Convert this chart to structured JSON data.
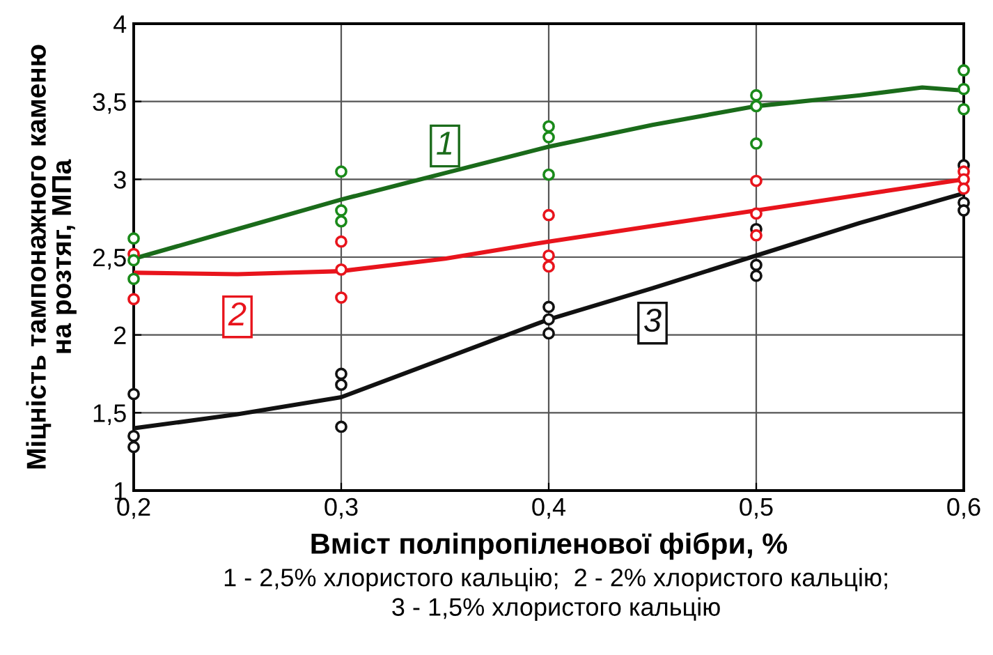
{
  "chart_data": {
    "type": "line",
    "xlabel": "Вміст поліпропіленової фібри, %",
    "ylabel": "Міцність тампонажного каменю\nна розтяг, МПа",
    "annotations": [
      "1 - 2,5% хлористого кальцію;  2 - 2% хлористого кальцію;",
      "3 - 1,5% хлористого кальцію"
    ],
    "xlim": [
      0.2,
      0.6
    ],
    "xticks": [
      {
        "value": 0.2,
        "label": "0,2"
      },
      {
        "value": 0.3,
        "label": "0,3"
      },
      {
        "value": 0.4,
        "label": "0,4"
      },
      {
        "value": 0.5,
        "label": "0,5"
      },
      {
        "value": 0.6,
        "label": "0,6"
      }
    ],
    "ylim": [
      1,
      4
    ],
    "yticks": [
      1,
      {
        "value": 1.5,
        "label": "1,5"
      },
      2,
      {
        "value": 2.5,
        "label": "2,5"
      },
      3,
      {
        "value": 3.5,
        "label": "3,5"
      },
      4
    ],
    "grid": true,
    "legend": false,
    "line_style": "solid",
    "series": [
      {
        "name": "1",
        "marker": "none",
        "color": "#1a6b1a",
        "x": [
          0.2,
          0.25,
          0.3,
          0.35,
          0.4,
          0.45,
          0.5,
          0.55,
          0.58,
          0.6
        ],
        "values": [
          2.49,
          2.68,
          2.87,
          3.04,
          3.21,
          3.35,
          3.47,
          3.54,
          3.59,
          3.57
        ]
      },
      {
        "name": "2",
        "marker": "none",
        "color": "#e8141c",
        "x": [
          0.2,
          0.25,
          0.3,
          0.35,
          0.4,
          0.45,
          0.5,
          0.55,
          0.6
        ],
        "values": [
          2.4,
          2.39,
          2.41,
          2.49,
          2.6,
          2.7,
          2.8,
          2.9,
          3.0
        ]
      },
      {
        "name": "3",
        "marker": "none",
        "color": "#111111",
        "x": [
          0.2,
          0.25,
          0.3,
          0.35,
          0.4,
          0.45,
          0.5,
          0.55,
          0.6
        ],
        "values": [
          1.4,
          1.49,
          1.6,
          1.85,
          2.1,
          2.3,
          2.51,
          2.72,
          2.91
        ]
      },
      {
        "type": "scatter",
        "marker": "circle",
        "color": "#1a8a1a",
        "x": [
          0.2,
          0.2,
          0.2,
          0.3,
          0.3,
          0.3,
          0.4,
          0.4,
          0.4,
          0.5,
          0.5,
          0.5,
          0.6,
          0.6,
          0.6
        ],
        "values": [
          2.62,
          2.48,
          2.36,
          3.05,
          2.8,
          2.73,
          3.34,
          3.27,
          3.03,
          3.54,
          3.47,
          3.23,
          3.7,
          3.58,
          3.45
        ]
      },
      {
        "type": "scatter",
        "marker": "circle",
        "color": "#e8141c",
        "x": [
          0.2,
          0.2,
          0.3,
          0.3,
          0.3,
          0.4,
          0.4,
          0.4,
          0.5,
          0.5,
          0.5,
          0.6,
          0.6,
          0.6
        ],
        "values": [
          2.52,
          2.23,
          2.6,
          2.42,
          2.24,
          2.77,
          2.51,
          2.44,
          2.99,
          2.78,
          2.64,
          3.05,
          3.0,
          2.94
        ]
      },
      {
        "type": "scatter",
        "marker": "circle",
        "color": "#111111",
        "x": [
          0.2,
          0.2,
          0.2,
          0.3,
          0.3,
          0.3,
          0.4,
          0.4,
          0.4,
          0.5,
          0.5,
          0.5,
          0.6,
          0.6,
          0.6
        ],
        "values": [
          1.62,
          1.35,
          1.28,
          1.75,
          1.68,
          1.41,
          2.18,
          2.1,
          2.01,
          2.68,
          2.45,
          2.38,
          3.09,
          2.85,
          2.8
        ]
      }
    ]
  }
}
